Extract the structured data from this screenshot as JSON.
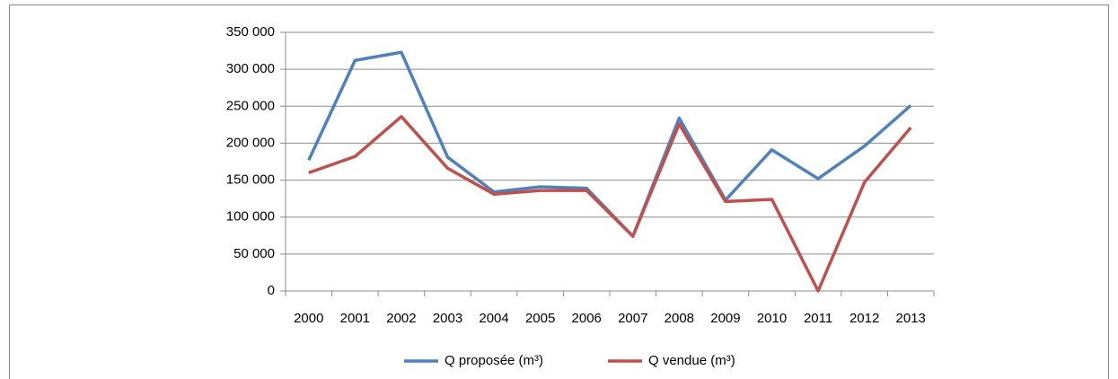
{
  "chart_data": {
    "type": "line",
    "categories": [
      "2000",
      "2001",
      "2002",
      "2003",
      "2004",
      "2005",
      "2006",
      "2007",
      "2008",
      "2009",
      "2010",
      "2011",
      "2012",
      "2013"
    ],
    "series": [
      {
        "name": "Q proposée (m³)",
        "color": "#4f81bd",
        "values": [
          177000,
          312000,
          323000,
          181000,
          134000,
          141000,
          139000,
          74000,
          234000,
          123000,
          191000,
          152000,
          196000,
          251000
        ]
      },
      {
        "name": "Q vendue (m³)",
        "color": "#c0504d",
        "values": [
          160000,
          182000,
          236000,
          166000,
          131000,
          136000,
          136000,
          74000,
          226000,
          121000,
          124000,
          0,
          147000,
          221000
        ]
      }
    ],
    "ylim": [
      0,
      350000
    ],
    "yticks": [
      0,
      {
        "value": 50000,
        "label": "50 000"
      },
      {
        "value": 100000,
        "label": "100 000"
      },
      {
        "value": 150000,
        "label": "150 000"
      },
      {
        "value": 200000,
        "label": "200 000"
      },
      {
        "value": 250000,
        "label": "250 000"
      },
      {
        "value": 300000,
        "label": "300 000"
      },
      {
        "value": 350000,
        "label": "350 000"
      }
    ],
    "grid": true,
    "legend": "bottom"
  }
}
